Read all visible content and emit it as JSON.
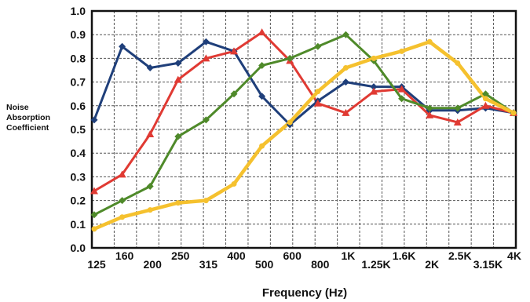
{
  "chart_data": {
    "type": "line",
    "title": "",
    "ylabel_lines": [
      "Noise",
      "Absorption",
      "Coefficient"
    ],
    "xlabel": "Frequency (Hz)",
    "ylim": [
      0.0,
      1.0
    ],
    "yticks": [
      "0.0",
      "0.1",
      "0.2",
      "0.3",
      "0.4",
      "0.5",
      "0.6",
      "0.7",
      "0.8",
      "0.9",
      "1.0"
    ],
    "categories": [
      "125",
      "160",
      "200",
      "250",
      "315",
      "400",
      "500",
      "600",
      "800",
      "1K",
      "1.25K",
      "1.6K",
      "2K",
      "2.5K",
      "3.15K",
      "4K"
    ],
    "grid": true,
    "series": [
      {
        "color": "#1f3f7a",
        "marker": "diamond",
        "values": [
          0.54,
          0.85,
          0.76,
          0.78,
          0.87,
          0.83,
          0.64,
          0.52,
          0.62,
          0.7,
          0.68,
          0.68,
          0.58,
          0.58,
          0.59,
          0.57
        ]
      },
      {
        "color": "#e03a33",
        "marker": "triangle",
        "values": [
          0.24,
          0.31,
          0.48,
          0.71,
          0.8,
          0.83,
          0.91,
          0.79,
          0.61,
          0.57,
          0.66,
          0.67,
          0.56,
          0.53,
          0.6,
          0.57
        ]
      },
      {
        "color": "#4f8a2a",
        "marker": "diamond",
        "values": [
          0.14,
          0.2,
          0.26,
          0.47,
          0.54,
          0.65,
          0.77,
          0.8,
          0.85,
          0.9,
          0.79,
          0.63,
          0.59,
          0.59,
          0.65,
          0.57
        ]
      },
      {
        "color": "#f5c12e",
        "marker": "circle",
        "values": [
          0.08,
          0.13,
          0.16,
          0.19,
          0.2,
          0.27,
          0.43,
          0.53,
          0.66,
          0.76,
          0.8,
          0.83,
          0.87,
          0.78,
          0.63,
          0.57
        ]
      }
    ]
  }
}
